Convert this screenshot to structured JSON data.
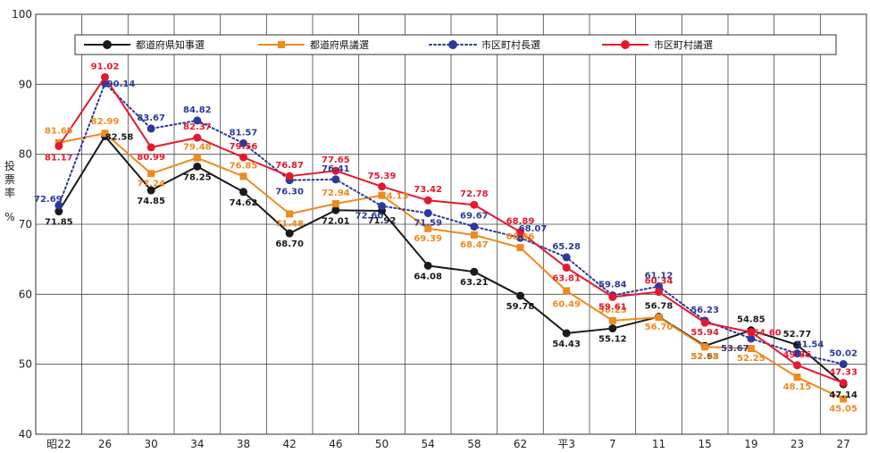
{
  "chart_data": {
    "type": "line",
    "title": "",
    "xlabel": "",
    "ylabel": "投票率",
    "yunit": "%",
    "ylim": [
      40,
      100
    ],
    "yticks": [
      40,
      50,
      60,
      70,
      80,
      90,
      100
    ],
    "grid": true,
    "legend_position": "top",
    "categories": [
      "昭22",
      "26",
      "30",
      "34",
      "38",
      "42",
      "46",
      "50",
      "54",
      "58",
      "62",
      "平3",
      "7",
      "11",
      "15",
      "19",
      "23",
      "27"
    ],
    "series": [
      {
        "name": "都道府県知事選",
        "color": "#1a1a1a",
        "marker": "circle",
        "line_style": "solid",
        "values": [
          71.85,
          82.58,
          74.85,
          78.25,
          74.62,
          68.7,
          72.01,
          71.92,
          64.08,
          63.21,
          59.78,
          54.43,
          55.12,
          56.78,
          52.63,
          54.85,
          52.77,
          47.14
        ],
        "labels": [
          "71.85",
          "82.58",
          "74.85",
          "78.25",
          "74.62",
          "68.70",
          "72.01",
          "71.92",
          "64.08",
          "63.21",
          "59.78",
          "54.43",
          "55.12",
          "56.78",
          "52.63",
          "54.85",
          "52.77",
          "47.14"
        ]
      },
      {
        "name": "都道府県議選",
        "color": "#ee8a1e",
        "marker": "square",
        "line_style": "solid",
        "values": [
          81.65,
          82.99,
          77.24,
          79.48,
          76.85,
          71.48,
          72.94,
          74.13,
          69.39,
          68.47,
          66.66,
          60.49,
          56.23,
          56.7,
          52.48,
          52.25,
          48.15,
          45.05
        ],
        "labels": [
          "81.65",
          "82.99",
          "77.24",
          "79.48",
          "76.85",
          "71.48",
          "72.94",
          "74.13",
          "69.39",
          "68.47",
          "66.66",
          "60.49",
          "56.23",
          "56.70",
          "52.48",
          "52.25",
          "48.15",
          "45.05"
        ]
      },
      {
        "name": "市区町村長選",
        "color": "#2b3a9a",
        "marker": "circle",
        "line_style": "dotted",
        "values": [
          72.69,
          90.14,
          83.67,
          84.82,
          81.57,
          76.3,
          76.41,
          72.6,
          71.59,
          69.67,
          68.07,
          65.28,
          59.84,
          61.12,
          56.23,
          53.67,
          51.54,
          50.02
        ],
        "labels": [
          "72.69",
          "90.14",
          "83.67",
          "84.82",
          "81.57",
          "76.30",
          "76.41",
          "72.60",
          "71.59",
          "69.67",
          "68.07",
          "65.28",
          "59.84",
          "61.12",
          "56.23",
          "53.67",
          "51.54",
          "50.02"
        ]
      },
      {
        "name": "市区町村議選",
        "color": "#e5192d",
        "marker": "circle",
        "line_style": "solid",
        "values": [
          81.17,
          91.02,
          80.99,
          82.37,
          79.56,
          76.87,
          77.65,
          75.39,
          73.42,
          72.78,
          68.89,
          63.81,
          59.61,
          60.34,
          55.94,
          54.6,
          49.86,
          47.33
        ],
        "labels": [
          "81.17",
          "91.02",
          "80.99",
          "82.37",
          "79.56",
          "76.87",
          "77.65",
          "75.39",
          "73.42",
          "72.78",
          "68.89",
          "63.81",
          "59.61",
          "60.34",
          "55.94",
          "54.60",
          "49.86",
          "47.33"
        ]
      }
    ]
  }
}
